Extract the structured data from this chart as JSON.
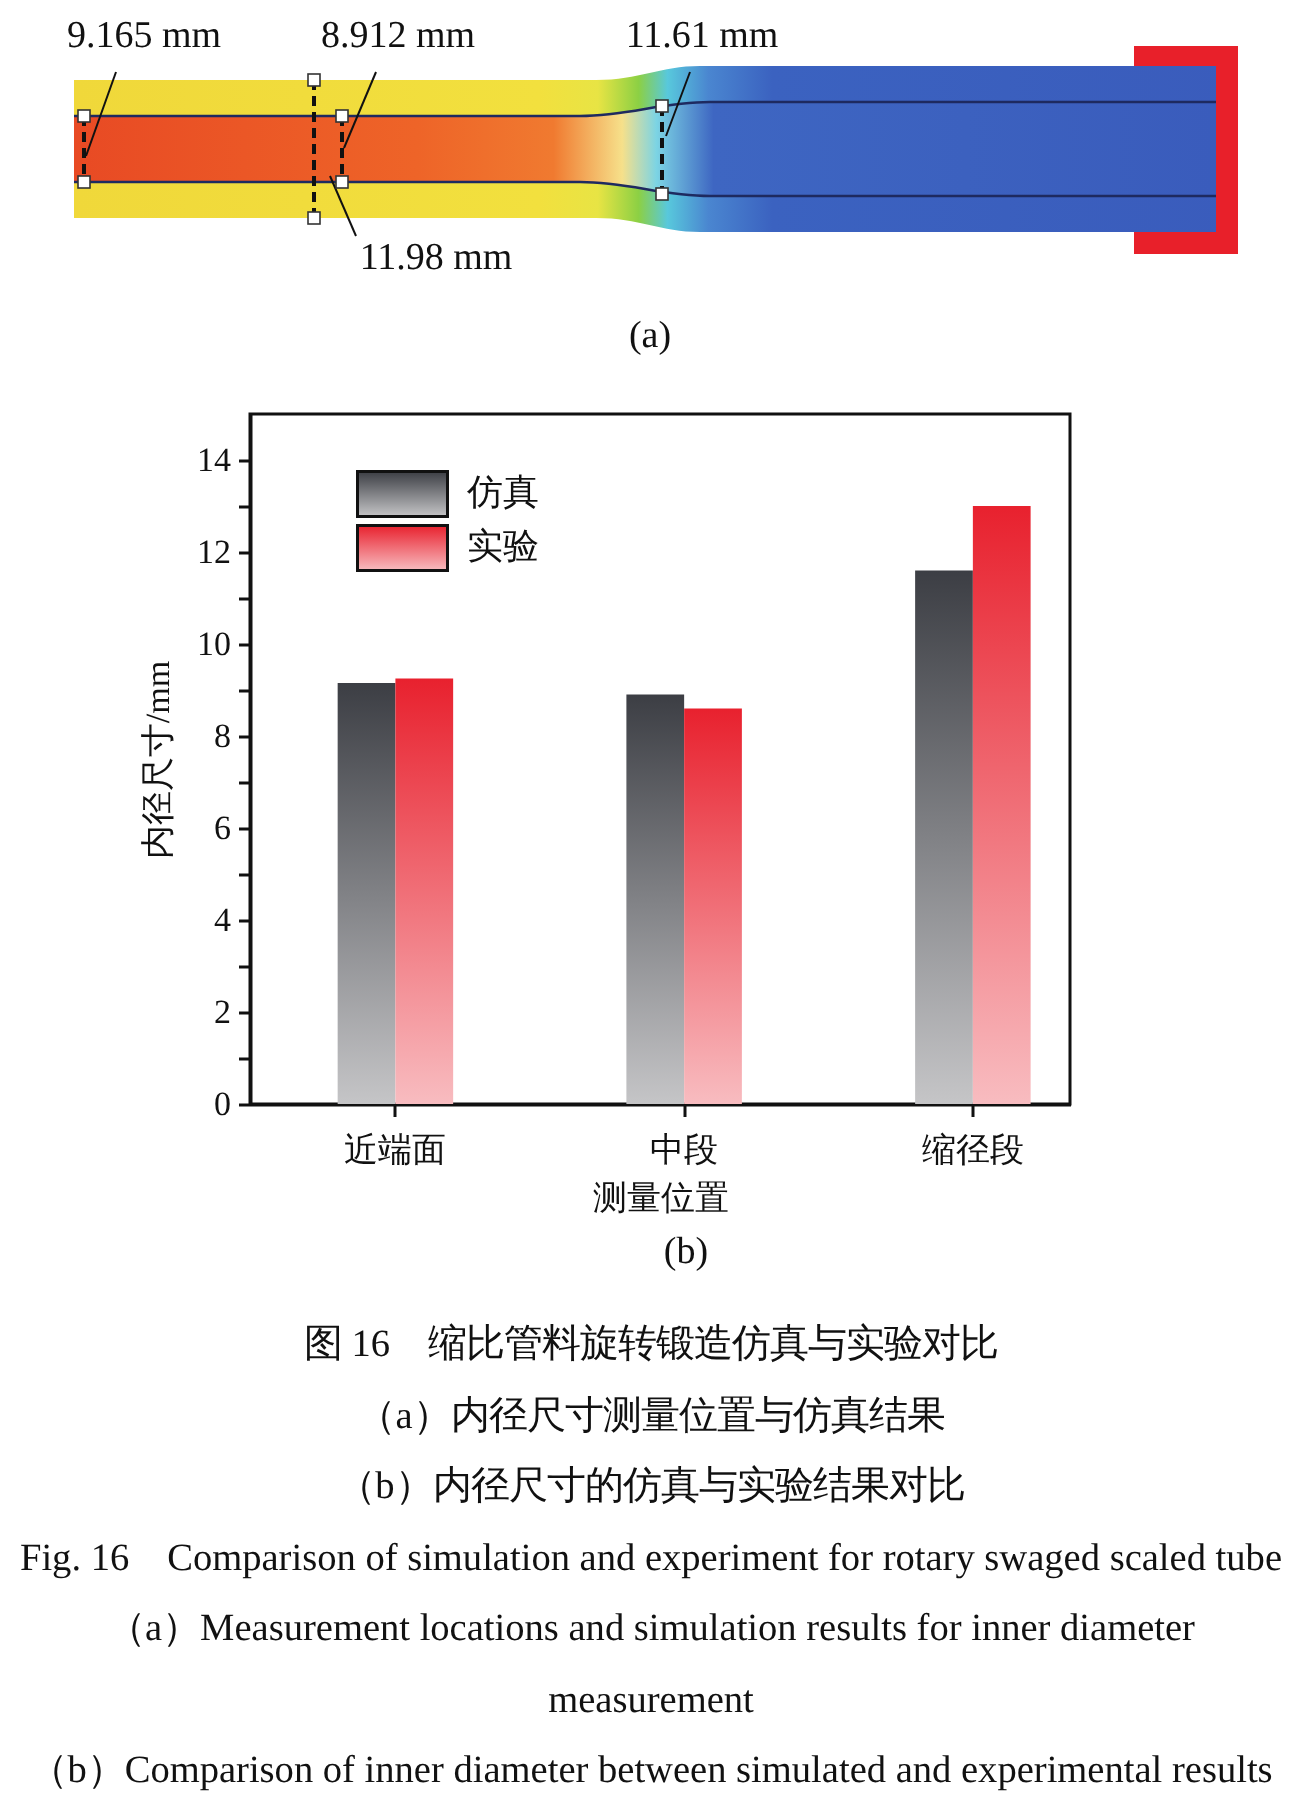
{
  "chart_data": {
    "type": "bar",
    "ylabel": "内径尺寸/mm",
    "xlabel": "测量位置",
    "categories": [
      "近端面",
      "中段",
      "缩径段"
    ],
    "series": [
      {
        "name": "仿真",
        "color": "#3c3e44",
        "values": [
          9.15,
          8.9,
          11.6
        ]
      },
      {
        "name": "实验",
        "color": "#e8212e",
        "values": [
          9.25,
          8.6,
          13.0
        ]
      }
    ],
    "ylim": [
      0,
      15
    ],
    "yticks": [
      0,
      {
        "value": 1,
        "label": null
      },
      2,
      {
        "value": 3,
        "label": null
      },
      4,
      {
        "value": 5,
        "label": null
      },
      6,
      {
        "value": 7,
        "label": null
      },
      8,
      {
        "value": 9,
        "label": null
      },
      10,
      {
        "value": 11,
        "label": null
      },
      12,
      {
        "value": 13,
        "label": null
      },
      14
    ],
    "grid": false,
    "legend": "top left",
    "annotations": [
      "9.165 mm",
      "8.912 mm",
      "11.61 mm",
      "11.98 mm",
      "(a)",
      "(b)",
      "图 16　缩比管料旋转锻造仿真与实验对比",
      "（a）内径尺寸测量位置与仿真结果",
      "（b）内径尺寸的仿真与实验结果对比",
      "Fig. 16　Comparison of simulation and experiment for rotary swaged scaled tube",
      "（a）Measurement locations and simulation results for inner diameter measurement",
      "（b）Comparison of inner diameter between simulated and experimental results"
    ]
  }
}
